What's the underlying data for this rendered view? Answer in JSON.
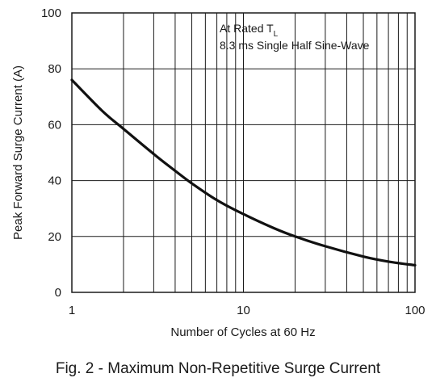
{
  "chart_data": {
    "type": "line",
    "x_scale": "log",
    "xlim": [
      1,
      100
    ],
    "ylim": [
      0,
      100
    ],
    "xlabel": "Number of Cycles at 60 Hz",
    "ylabel": "Peak Forward Surge Current (A)",
    "x_ticks": [
      "1",
      "10",
      "100"
    ],
    "y_ticks": [
      "0",
      "20",
      "40",
      "60",
      "80",
      "100"
    ],
    "grid": true,
    "annotation": {
      "line1_main": "At Rated T",
      "line1_sub": "L",
      "line2": "8.3 ms Single Half Sine-Wave"
    },
    "series": [
      {
        "x": [
          1,
          1.5,
          2,
          3,
          4,
          5,
          7,
          10,
          15,
          20,
          30,
          50,
          70,
          100
        ],
        "y": [
          76,
          65,
          58.5,
          49.5,
          43.5,
          39,
          33,
          28,
          23,
          20,
          16.5,
          12.8,
          11,
          9.7
        ]
      }
    ],
    "caption": "Fig. 2 - Maximum Non-Repetitive Surge Current"
  }
}
